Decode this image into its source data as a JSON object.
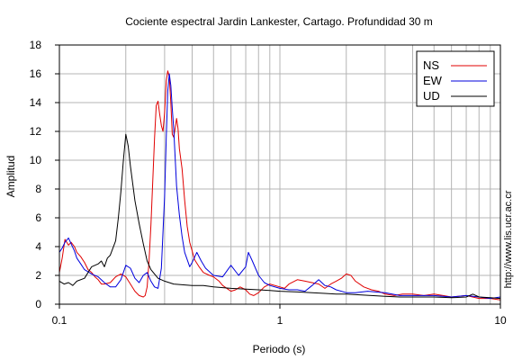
{
  "chart_data": {
    "type": "line",
    "title": "Cociente espectral Jardin Lankester, Cartago. Profundidad 30 m",
    "xlabel": "Periodo (s)",
    "ylabel": "Amplitud",
    "x_scale": "log",
    "xlim": [
      0.1,
      10
    ],
    "ylim": [
      0,
      18
    ],
    "x_ticks": [
      {
        "value": 0.1,
        "label": "0.1"
      },
      {
        "value": 1,
        "label": "1"
      },
      {
        "value": 10,
        "label": "10"
      }
    ],
    "y_ticks": [
      {
        "value": 0,
        "label": "0"
      },
      {
        "value": 2,
        "label": "2"
      },
      {
        "value": 4,
        "label": "4"
      },
      {
        "value": 6,
        "label": "6"
      },
      {
        "value": 8,
        "label": "8"
      },
      {
        "value": 10,
        "label": "10"
      },
      {
        "value": 12,
        "label": "12"
      },
      {
        "value": 14,
        "label": "14"
      },
      {
        "value": 16,
        "label": "16"
      },
      {
        "value": 18,
        "label": "18"
      }
    ],
    "grid": true,
    "legend_position": "top-right",
    "annotation": "http://www.lis.ucr.ac.cr",
    "series": [
      {
        "name": "NS",
        "color": "#e00000",
        "points": [
          [
            0.1,
            2.2
          ],
          [
            0.103,
            3.2
          ],
          [
            0.106,
            4.5
          ],
          [
            0.11,
            4.1
          ],
          [
            0.113,
            4.3
          ],
          [
            0.117,
            4.0
          ],
          [
            0.12,
            3.6
          ],
          [
            0.125,
            3.3
          ],
          [
            0.13,
            2.9
          ],
          [
            0.135,
            2.4
          ],
          [
            0.14,
            2.2
          ],
          [
            0.145,
            1.9
          ],
          [
            0.15,
            1.7
          ],
          [
            0.155,
            1.4
          ],
          [
            0.16,
            1.4
          ],
          [
            0.17,
            1.5
          ],
          [
            0.18,
            1.9
          ],
          [
            0.19,
            2.1
          ],
          [
            0.2,
            1.9
          ],
          [
            0.21,
            1.4
          ],
          [
            0.22,
            0.9
          ],
          [
            0.23,
            0.6
          ],
          [
            0.24,
            0.5
          ],
          [
            0.245,
            0.6
          ],
          [
            0.25,
            1.2
          ],
          [
            0.255,
            3.0
          ],
          [
            0.26,
            5.5
          ],
          [
            0.265,
            8.5
          ],
          [
            0.27,
            11.5
          ],
          [
            0.275,
            13.8
          ],
          [
            0.28,
            14.1
          ],
          [
            0.285,
            13.2
          ],
          [
            0.29,
            12.4
          ],
          [
            0.295,
            12.0
          ],
          [
            0.3,
            13.3
          ],
          [
            0.305,
            15.5
          ],
          [
            0.31,
            16.2
          ],
          [
            0.315,
            15.8
          ],
          [
            0.32,
            14.0
          ],
          [
            0.325,
            11.8
          ],
          [
            0.33,
            11.6
          ],
          [
            0.335,
            12.2
          ],
          [
            0.34,
            12.9
          ],
          [
            0.345,
            12.2
          ],
          [
            0.35,
            10.8
          ],
          [
            0.36,
            9.4
          ],
          [
            0.37,
            7.2
          ],
          [
            0.38,
            5.4
          ],
          [
            0.39,
            4.3
          ],
          [
            0.4,
            3.7
          ],
          [
            0.41,
            3.1
          ],
          [
            0.43,
            2.6
          ],
          [
            0.45,
            2.2
          ],
          [
            0.48,
            2.0
          ],
          [
            0.5,
            1.9
          ],
          [
            0.53,
            1.6
          ],
          [
            0.55,
            1.3
          ],
          [
            0.6,
            0.9
          ],
          [
            0.63,
            1.0
          ],
          [
            0.66,
            1.2
          ],
          [
            0.7,
            1.0
          ],
          [
            0.73,
            0.7
          ],
          [
            0.76,
            0.6
          ],
          [
            0.8,
            0.8
          ],
          [
            0.85,
            1.2
          ],
          [
            0.9,
            1.4
          ],
          [
            1.0,
            1.2
          ],
          [
            1.05,
            1.1
          ],
          [
            1.1,
            1.4
          ],
          [
            1.2,
            1.7
          ],
          [
            1.3,
            1.6
          ],
          [
            1.5,
            1.4
          ],
          [
            1.6,
            1.1
          ],
          [
            1.7,
            1.4
          ],
          [
            1.8,
            1.6
          ],
          [
            1.9,
            1.8
          ],
          [
            2.0,
            2.1
          ],
          [
            2.1,
            2.0
          ],
          [
            2.2,
            1.6
          ],
          [
            2.4,
            1.2
          ],
          [
            2.6,
            1.0
          ],
          [
            2.8,
            0.9
          ],
          [
            3.0,
            0.7
          ],
          [
            3.3,
            0.6
          ],
          [
            3.6,
            0.7
          ],
          [
            4.0,
            0.7
          ],
          [
            4.5,
            0.6
          ],
          [
            5.0,
            0.7
          ],
          [
            5.5,
            0.6
          ],
          [
            6.0,
            0.5
          ],
          [
            7.0,
            0.6
          ],
          [
            8.0,
            0.4
          ],
          [
            9.0,
            0.4
          ],
          [
            10.0,
            0.3
          ]
        ]
      },
      {
        "name": "EW",
        "color": "#0000dd",
        "points": [
          [
            0.1,
            3.6
          ],
          [
            0.103,
            3.9
          ],
          [
            0.106,
            4.3
          ],
          [
            0.11,
            4.6
          ],
          [
            0.113,
            4.2
          ],
          [
            0.117,
            3.7
          ],
          [
            0.12,
            3.2
          ],
          [
            0.125,
            2.8
          ],
          [
            0.13,
            2.4
          ],
          [
            0.14,
            2.1
          ],
          [
            0.15,
            1.9
          ],
          [
            0.16,
            1.5
          ],
          [
            0.17,
            1.2
          ],
          [
            0.18,
            1.2
          ],
          [
            0.19,
            1.7
          ],
          [
            0.2,
            2.7
          ],
          [
            0.21,
            2.5
          ],
          [
            0.22,
            1.8
          ],
          [
            0.23,
            1.5
          ],
          [
            0.24,
            2.0
          ],
          [
            0.25,
            2.2
          ],
          [
            0.26,
            1.6
          ],
          [
            0.27,
            1.2
          ],
          [
            0.28,
            1.1
          ],
          [
            0.29,
            2.5
          ],
          [
            0.3,
            7.5
          ],
          [
            0.305,
            11.5
          ],
          [
            0.31,
            14.8
          ],
          [
            0.315,
            16.0
          ],
          [
            0.32,
            15.2
          ],
          [
            0.325,
            13.6
          ],
          [
            0.33,
            12.2
          ],
          [
            0.335,
            10.2
          ],
          [
            0.34,
            8.2
          ],
          [
            0.35,
            6.2
          ],
          [
            0.36,
            4.7
          ],
          [
            0.37,
            3.6
          ],
          [
            0.38,
            3.1
          ],
          [
            0.39,
            2.6
          ],
          [
            0.4,
            2.9
          ],
          [
            0.42,
            3.6
          ],
          [
            0.44,
            3.0
          ],
          [
            0.46,
            2.5
          ],
          [
            0.5,
            2.0
          ],
          [
            0.55,
            1.9
          ],
          [
            0.6,
            2.7
          ],
          [
            0.65,
            2.0
          ],
          [
            0.7,
            2.6
          ],
          [
            0.72,
            3.6
          ],
          [
            0.75,
            3.0
          ],
          [
            0.8,
            2.0
          ],
          [
            0.85,
            1.5
          ],
          [
            0.9,
            1.3
          ],
          [
            1.0,
            1.1
          ],
          [
            1.1,
            1.0
          ],
          [
            1.2,
            1.0
          ],
          [
            1.3,
            0.9
          ],
          [
            1.4,
            1.3
          ],
          [
            1.5,
            1.7
          ],
          [
            1.6,
            1.3
          ],
          [
            1.7,
            1.2
          ],
          [
            1.8,
            1.0
          ],
          [
            2.0,
            0.8
          ],
          [
            2.2,
            0.8
          ],
          [
            2.5,
            0.9
          ],
          [
            3.0,
            0.8
          ],
          [
            3.5,
            0.6
          ],
          [
            4.0,
            0.6
          ],
          [
            5.0,
            0.6
          ],
          [
            6.0,
            0.5
          ],
          [
            7.0,
            0.6
          ],
          [
            8.0,
            0.5
          ],
          [
            9.0,
            0.4
          ],
          [
            10.0,
            0.5
          ]
        ]
      },
      {
        "name": "UD",
        "color": "#000000",
        "points": [
          [
            0.1,
            1.6
          ],
          [
            0.105,
            1.4
          ],
          [
            0.11,
            1.5
          ],
          [
            0.115,
            1.3
          ],
          [
            0.12,
            1.6
          ],
          [
            0.13,
            1.8
          ],
          [
            0.14,
            2.6
          ],
          [
            0.15,
            2.8
          ],
          [
            0.155,
            3.0
          ],
          [
            0.16,
            2.6
          ],
          [
            0.165,
            3.2
          ],
          [
            0.17,
            3.4
          ],
          [
            0.175,
            3.9
          ],
          [
            0.18,
            4.4
          ],
          [
            0.185,
            6.0
          ],
          [
            0.19,
            7.8
          ],
          [
            0.195,
            10.0
          ],
          [
            0.2,
            11.8
          ],
          [
            0.205,
            11.0
          ],
          [
            0.21,
            9.6
          ],
          [
            0.215,
            8.4
          ],
          [
            0.22,
            7.2
          ],
          [
            0.23,
            5.6
          ],
          [
            0.24,
            4.2
          ],
          [
            0.25,
            3.0
          ],
          [
            0.26,
            2.4
          ],
          [
            0.28,
            1.8
          ],
          [
            0.3,
            1.6
          ],
          [
            0.33,
            1.4
          ],
          [
            0.36,
            1.35
          ],
          [
            0.4,
            1.3
          ],
          [
            0.45,
            1.3
          ],
          [
            0.5,
            1.2
          ],
          [
            0.6,
            1.1
          ],
          [
            0.7,
            1.05
          ],
          [
            0.8,
            1.0
          ],
          [
            0.9,
            0.95
          ],
          [
            1.0,
            0.9
          ],
          [
            1.2,
            0.85
          ],
          [
            1.4,
            0.8
          ],
          [
            1.6,
            0.75
          ],
          [
            1.8,
            0.7
          ],
          [
            2.0,
            0.7
          ],
          [
            2.3,
            0.65
          ],
          [
            2.6,
            0.6
          ],
          [
            3.0,
            0.55
          ],
          [
            3.5,
            0.5
          ],
          [
            4.0,
            0.5
          ],
          [
            5.0,
            0.5
          ],
          [
            6.0,
            0.45
          ],
          [
            7.0,
            0.5
          ],
          [
            7.5,
            0.7
          ],
          [
            8.0,
            0.5
          ],
          [
            9.0,
            0.45
          ],
          [
            10.0,
            0.4
          ]
        ]
      }
    ]
  }
}
